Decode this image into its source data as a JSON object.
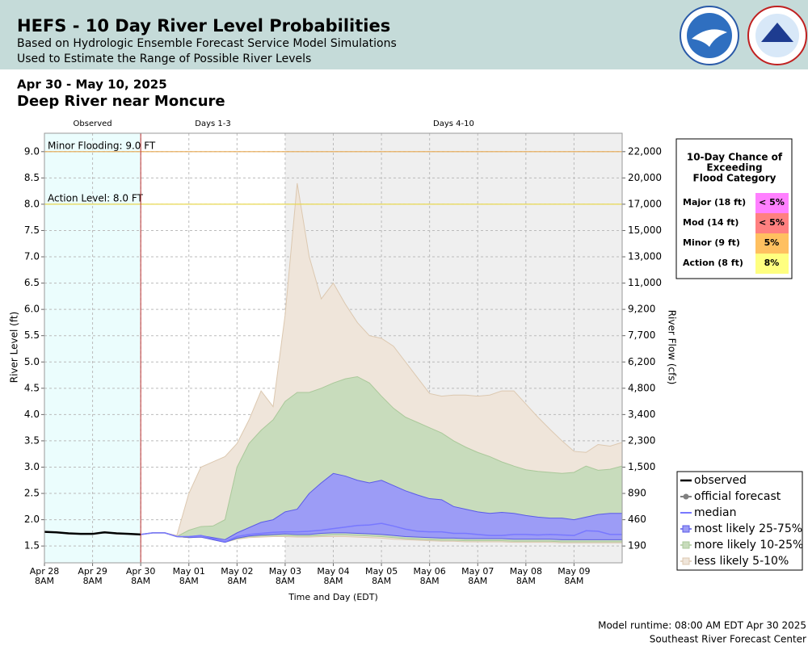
{
  "chart_data": {
    "type": "area",
    "title": "HEFS - 10 Day River Level Probabilities",
    "subtitle": [
      "Based on Hydrologic Ensemble Forecast Service Model Simulations",
      "Used to Estimate the Range of Possible River Levels"
    ],
    "period": "Apr 30 - May 10, 2025",
    "location": "Deep River near Moncure",
    "x_label": "Time and Day (EDT)",
    "y_label": "River Level (ft)",
    "y2_label": "River Flow (cfs)",
    "xlim": [
      "2025-04-28T08:00",
      "2025-05-10T08:00"
    ],
    "ylim": [
      1.18,
      9.35
    ],
    "grid": true,
    "xticks": [
      {
        "value": "2025-04-28T08:00",
        "label": "Apr 28\n8AM"
      },
      {
        "value": "2025-04-29T08:00",
        "label": "Apr 29\n8AM"
      },
      {
        "value": "2025-04-30T08:00",
        "label": "Apr 30\n8AM"
      },
      {
        "value": "2025-05-01T08:00",
        "label": "May 01\n8AM"
      },
      {
        "value": "2025-05-02T08:00",
        "label": "May 02\n8AM"
      },
      {
        "value": "2025-05-03T08:00",
        "label": "May 03\n8AM"
      },
      {
        "value": "2025-05-04T08:00",
        "label": "May 04\n8AM"
      },
      {
        "value": "2025-05-05T08:00",
        "label": "May 05\n8AM"
      },
      {
        "value": "2025-05-06T08:00",
        "label": "May 06\n8AM"
      },
      {
        "value": "2025-05-07T08:00",
        "label": "May 07\n8AM"
      },
      {
        "value": "2025-05-08T08:00",
        "label": "May 08\n8AM"
      },
      {
        "value": "2025-05-09T08:00",
        "label": "May 09\n8AM"
      }
    ],
    "yticks": [
      1.5,
      {
        "value": 2,
        "label": "2.0"
      },
      2.5,
      {
        "value": 3,
        "label": "3.0"
      },
      3.5,
      {
        "value": 4,
        "label": "4.0"
      },
      4.5,
      {
        "value": 5,
        "label": "5.0"
      },
      5.5,
      {
        "value": 6,
        "label": "6.0"
      },
      6.5,
      {
        "value": 7,
        "label": "7.0"
      },
      7.5,
      {
        "value": 8,
        "label": "8.0"
      },
      8.5,
      {
        "value": 9,
        "label": "9.0"
      }
    ],
    "y2ticks": [
      {
        "value": 190,
        "label": "190",
        "stage": 1.5
      },
      {
        "value": 460,
        "label": "460",
        "stage": 2.0
      },
      {
        "value": 890,
        "label": "890",
        "stage": 2.5
      },
      {
        "value": 1500,
        "label": "1,500",
        "stage": 3.0
      },
      {
        "value": 2300,
        "label": "2,300",
        "stage": 3.5
      },
      {
        "value": 3400,
        "label": "3,400",
        "stage": 4.0
      },
      {
        "value": 4800,
        "label": "4,800",
        "stage": 4.5
      },
      {
        "value": 6200,
        "label": "6,200",
        "stage": 5.0
      },
      {
        "value": 7700,
        "label": "7,700",
        "stage": 5.5
      },
      {
        "value": 9200,
        "label": "9,200",
        "stage": 6.0
      },
      {
        "value": 11000,
        "label": "11,000",
        "stage": 6.5
      },
      {
        "value": 13000,
        "label": "13,000",
        "stage": 7.0
      },
      {
        "value": 15000,
        "label": "15,000",
        "stage": 7.5
      },
      {
        "value": 17000,
        "label": "17,000",
        "stage": 8.0
      },
      {
        "value": 20000,
        "label": "20,000",
        "stage": 8.5
      },
      {
        "value": 22000,
        "label": "22,000",
        "stage": 9.0
      }
    ],
    "regions": [
      {
        "label": "Observed",
        "start": "2025-04-28T08:00",
        "end": "2025-04-30T08:00",
        "color": "#ebfdfd"
      },
      {
        "label": "Days 1-3",
        "start": "2025-04-30T08:00",
        "end": "2025-05-03T08:00",
        "color": "#ffffff"
      },
      {
        "label": "Days 4-10",
        "start": "2025-05-03T08:00",
        "end": "2025-05-10T08:00",
        "color": "#efefef"
      }
    ],
    "thresholds": [
      {
        "label": "Minor Flooding: 9.0 FT",
        "value": 9.0,
        "color": "#e8a850"
      },
      {
        "label": "Action Level: 8.0 FT",
        "value": 8.0,
        "color": "#e8d850"
      }
    ],
    "x": [
      "2025-04-30T08:00",
      "2025-04-30T14:00",
      "2025-04-30T20:00",
      "2025-05-01T02:00",
      "2025-05-01T08:00",
      "2025-05-01T14:00",
      "2025-05-01T20:00",
      "2025-05-02T02:00",
      "2025-05-02T08:00",
      "2025-05-02T14:00",
      "2025-05-02T20:00",
      "2025-05-03T02:00",
      "2025-05-03T08:00",
      "2025-05-03T14:00",
      "2025-05-03T20:00",
      "2025-05-04T02:00",
      "2025-05-04T08:00",
      "2025-05-04T14:00",
      "2025-05-04T20:00",
      "2025-05-05T02:00",
      "2025-05-05T08:00",
      "2025-05-05T14:00",
      "2025-05-05T20:00",
      "2025-05-06T02:00",
      "2025-05-06T08:00",
      "2025-05-06T14:00",
      "2025-05-06T20:00",
      "2025-05-07T02:00",
      "2025-05-07T08:00",
      "2025-05-07T14:00",
      "2025-05-07T20:00",
      "2025-05-08T02:00",
      "2025-05-08T08:00",
      "2025-05-08T14:00",
      "2025-05-08T20:00",
      "2025-05-09T02:00",
      "2025-05-09T08:00",
      "2025-05-09T14:00",
      "2025-05-09T20:00",
      "2025-05-10T02:00",
      "2025-05-10T08:00"
    ],
    "series": [
      {
        "name": "observed",
        "kind": "line",
        "color": "#000000",
        "x": [
          "2025-04-28T08:00",
          "2025-04-28T14:00",
          "2025-04-28T20:00",
          "2025-04-29T02:00",
          "2025-04-29T08:00",
          "2025-04-29T14:00",
          "2025-04-29T20:00",
          "2025-04-30T02:00",
          "2025-04-30T08:00"
        ],
        "values": [
          1.77,
          1.76,
          1.74,
          1.73,
          1.73,
          1.76,
          1.74,
          1.73,
          1.72
        ]
      },
      {
        "name": "official forecast",
        "kind": "dotline",
        "color": "#808080",
        "x": [
          "2025-04-30T08:00",
          "2025-04-30T14:00",
          "2025-04-30T20:00",
          "2025-05-01T02:00",
          "2025-05-01T08:00"
        ],
        "values": [
          1.72,
          1.75,
          1.75,
          1.68,
          1.67
        ]
      },
      {
        "name": "median",
        "kind": "line",
        "color": "#7878ff",
        "values": [
          1.72,
          1.75,
          1.75,
          1.68,
          1.68,
          1.7,
          1.64,
          1.58,
          1.68,
          1.72,
          1.74,
          1.76,
          1.77,
          1.77,
          1.78,
          1.8,
          1.83,
          1.86,
          1.89,
          1.9,
          1.93,
          1.88,
          1.82,
          1.78,
          1.77,
          1.77,
          1.74,
          1.74,
          1.72,
          1.7,
          1.7,
          1.72,
          1.72,
          1.71,
          1.72,
          1.71,
          1.7,
          1.79,
          1.78,
          1.72,
          1.72
        ]
      },
      {
        "name": "most likely 25-75%",
        "kind": "band",
        "color": "#9c9cf6",
        "edge": "#5a5ae8",
        "values": [
          1.72,
          1.75,
          1.75,
          1.68,
          1.68,
          1.7,
          1.66,
          1.62,
          1.75,
          1.85,
          1.95,
          2.0,
          2.15,
          2.2,
          2.5,
          2.7,
          2.88,
          2.83,
          2.75,
          2.7,
          2.75,
          2.65,
          2.55,
          2.47,
          2.4,
          2.38,
          2.25,
          2.2,
          2.15,
          2.12,
          2.14,
          2.12,
          2.08,
          2.05,
          2.03,
          2.03,
          2.0,
          2.05,
          2.1,
          2.12,
          2.12
        ],
        "low": [
          1.72,
          1.75,
          1.75,
          1.68,
          1.66,
          1.67,
          1.62,
          1.57,
          1.65,
          1.69,
          1.71,
          1.72,
          1.73,
          1.72,
          1.72,
          1.74,
          1.75,
          1.75,
          1.74,
          1.73,
          1.72,
          1.7,
          1.68,
          1.67,
          1.66,
          1.65,
          1.65,
          1.64,
          1.64,
          1.64,
          1.64,
          1.63,
          1.63,
          1.63,
          1.63,
          1.62,
          1.62,
          1.62,
          1.62,
          1.62,
          1.62
        ]
      },
      {
        "name": "more likely 10-25%",
        "kind": "band",
        "color": "#c8dcbc",
        "edge": "#aac89a",
        "values": [
          1.72,
          1.75,
          1.75,
          1.68,
          1.8,
          1.87,
          1.88,
          2.0,
          3.0,
          3.45,
          3.7,
          3.9,
          4.25,
          4.42,
          4.42,
          4.5,
          4.6,
          4.68,
          4.72,
          4.6,
          4.35,
          4.12,
          3.95,
          3.85,
          3.75,
          3.65,
          3.5,
          3.38,
          3.28,
          3.2,
          3.1,
          3.02,
          2.95,
          2.92,
          2.9,
          2.88,
          2.9,
          3.02,
          2.94,
          2.96,
          3.02
        ],
        "low": [
          1.72,
          1.75,
          1.75,
          1.68,
          1.66,
          1.67,
          1.62,
          1.57,
          1.64,
          1.68,
          1.69,
          1.7,
          1.7,
          1.69,
          1.69,
          1.7,
          1.71,
          1.71,
          1.7,
          1.69,
          1.68,
          1.66,
          1.64,
          1.63,
          1.62,
          1.61,
          1.61,
          1.6,
          1.6,
          1.6,
          1.6,
          1.59,
          1.59,
          1.59,
          1.59,
          1.58,
          1.58,
          1.58,
          1.58,
          1.58,
          1.58
        ]
      },
      {
        "name": "less likely 5-10%",
        "kind": "band",
        "color": "#efe5da",
        "edge": "#dcc8b0",
        "values": [
          1.72,
          1.75,
          1.75,
          1.7,
          2.5,
          3.0,
          3.1,
          3.2,
          3.45,
          3.9,
          4.45,
          4.15,
          5.9,
          8.4,
          7.0,
          6.2,
          6.5,
          6.1,
          5.75,
          5.5,
          5.45,
          5.3,
          5.0,
          4.7,
          4.4,
          4.35,
          4.37,
          4.37,
          4.35,
          4.37,
          4.45,
          4.45,
          4.2,
          3.95,
          3.72,
          3.5,
          3.3,
          3.28,
          3.43,
          3.4,
          3.47
        ],
        "low": [
          1.72,
          1.75,
          1.75,
          1.68,
          1.66,
          1.67,
          1.62,
          1.57,
          1.63,
          1.66,
          1.67,
          1.68,
          1.68,
          1.67,
          1.67,
          1.68,
          1.68,
          1.68,
          1.67,
          1.66,
          1.65,
          1.63,
          1.62,
          1.61,
          1.6,
          1.59,
          1.59,
          1.58,
          1.58,
          1.58,
          1.58,
          1.57,
          1.57,
          1.57,
          1.57,
          1.56,
          1.56,
          1.56,
          1.56,
          1.56,
          1.56
        ]
      }
    ],
    "flood_table": {
      "title": [
        "10-Day Chance of",
        "Exceeding",
        "Flood Category"
      ],
      "rows": [
        {
          "label": "Major (18 ft)",
          "chance": "< 5%",
          "color": "#ff80ff"
        },
        {
          "label": "Mod (14 ft)",
          "chance": "< 5%",
          "color": "#ff8080"
        },
        {
          "label": "Minor (9 ft)",
          "chance": "5%",
          "color": "#ffc060"
        },
        {
          "label": "Action (8 ft)",
          "chance": "8%",
          "color": "#ffff80"
        }
      ]
    },
    "model_runtime": "Model runtime: 08:00 AM EDT Apr 30 2025",
    "center": "Southeast River Forecast Center"
  }
}
